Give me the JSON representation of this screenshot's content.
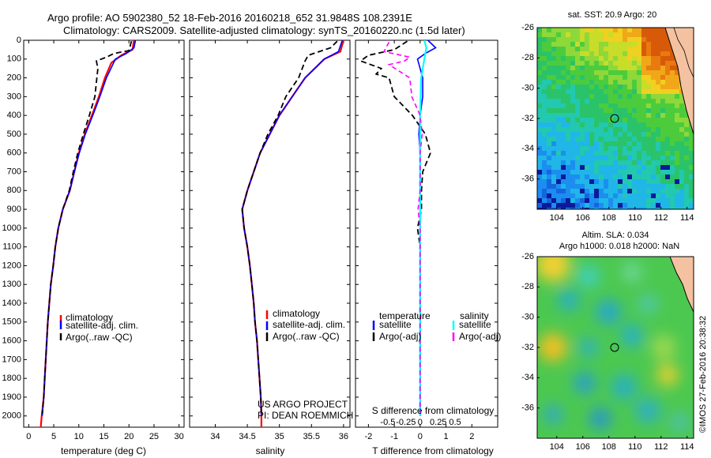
{
  "header": {
    "line1": "Argo profile: AO 5902380_52 18-Feb-2016 20160218_652 31.9848S 108.2391E",
    "line2": "Climatology: CARS2009. Satellite-adjusted climatology: synTS_20160220.nc (1.5d later)"
  },
  "colors": {
    "climatology": "#ff0000",
    "satellite": "#0000ff",
    "argo": "#000000",
    "salinity_satellite": "#00ffff",
    "salinity_argo": "#ff00ff"
  },
  "depth_axis": {
    "ylim": [
      0,
      2060
    ],
    "ticks": [
      0,
      100,
      200,
      300,
      400,
      500,
      600,
      700,
      800,
      900,
      1000,
      1100,
      1200,
      1300,
      1400,
      1500,
      1600,
      1700,
      1800,
      1900,
      2000
    ],
    "tick_labels": [
      "0",
      "100",
      "200",
      "300",
      "400",
      "500",
      "600",
      "700",
      "800",
      "900",
      "1000",
      "1100",
      "1200",
      "1300",
      "1400",
      "1500",
      "1600",
      "1700",
      "1800",
      "1900",
      "2000"
    ]
  },
  "panels": {
    "temperature": {
      "xlabel": "temperature (deg C)",
      "xlim": [
        -1,
        31
      ],
      "ticks": [
        0,
        5,
        10,
        15,
        20,
        25,
        30
      ],
      "tick_labels": [
        "0",
        "5",
        "10",
        "15",
        "20",
        "25",
        "30"
      ],
      "legend": [
        "climatology",
        "satellite-adj. clim.",
        "Argo(..raw -QC)"
      ]
    },
    "salinity": {
      "xlabel": "salinity",
      "xlim": [
        33.6,
        36.1
      ],
      "ticks": [
        34,
        34.5,
        35,
        35.5,
        36
      ],
      "tick_labels": [
        "34",
        "34.5",
        "35",
        "35.5",
        "36"
      ],
      "legend": [
        "climatology",
        "satellite-adj. clim.",
        "Argo(..raw -QC)"
      ],
      "note1": "US ARGO PROJECT",
      "note2": "PI: DEAN ROEMMICH"
    },
    "difference": {
      "xlabel": "T difference from climatology",
      "xlabel_top": "S difference from climatology",
      "xlim": [
        -2.5,
        3.0
      ],
      "t_ticks": [
        -2,
        -1,
        0,
        1,
        2
      ],
      "t_tick_labels": [
        "-2",
        "-1",
        "0",
        "1",
        "2"
      ],
      "s_tick_labels": [
        "-0.5",
        "-0.25",
        "0",
        "0.25",
        "0.5"
      ],
      "legend_temperature_title": "temperature",
      "legend_salinity_title": "salinity",
      "legend_satellite": "satellite",
      "legend_argo": "Argo(-adj)"
    }
  },
  "maps": {
    "sst": {
      "title": "sat. SST: 20.9 Argo: 20",
      "lon_ticks": [
        "104",
        "106",
        "108",
        "110",
        "112",
        "114"
      ],
      "lat_ticks": [
        "-26",
        "-28",
        "-30",
        "-32",
        "-34",
        "-36"
      ]
    },
    "sla": {
      "title1": "Altim. SLA: 0.034",
      "title2": "Argo h1000: 0.018 h2000: NaN",
      "lon_ticks": [
        "104",
        "106",
        "108",
        "110",
        "112",
        "114"
      ],
      "lat_ticks": [
        "-26",
        "-28",
        "-30",
        "-32",
        "-34",
        "-36"
      ]
    },
    "lon_range": [
      102.5,
      114.5
    ],
    "lat_range": [
      -26,
      -38
    ],
    "float_position": {
      "lon": 108.24,
      "lat": -31.98
    }
  },
  "credit": "©IMOS 27-Feb-2016 20:38:32",
  "chart_data": [
    {
      "type": "line",
      "title": "",
      "xlabel": "temperature (deg C)",
      "ylabel": "",
      "series": [
        {
          "name": "climatology",
          "points": [
            [
              21,
              0
            ],
            [
              20.7,
              50
            ],
            [
              18.5,
              80
            ],
            [
              16.5,
              120
            ],
            [
              15.2,
              200
            ],
            [
              14,
              300
            ],
            [
              12.6,
              400
            ],
            [
              11.2,
              500
            ],
            [
              10,
              600
            ],
            [
              9.1,
              700
            ],
            [
              8.2,
              800
            ],
            [
              6.8,
              900
            ],
            [
              5.9,
              1000
            ],
            [
              5.3,
              1100
            ],
            [
              4.9,
              1200
            ],
            [
              4.4,
              1300
            ],
            [
              4.1,
              1400
            ],
            [
              3.8,
              1500
            ],
            [
              3.6,
              1600
            ],
            [
              3.4,
              1700
            ],
            [
              3.2,
              1800
            ],
            [
              3.0,
              1900
            ],
            [
              2.6,
              2000
            ],
            [
              2.4,
              2060
            ]
          ]
        },
        {
          "name": "satellite-adj. clim.",
          "points": [
            [
              21.3,
              0
            ],
            [
              21,
              40
            ],
            [
              19.5,
              70
            ],
            [
              17.3,
              100
            ],
            [
              15.5,
              200
            ],
            [
              14.2,
              300
            ],
            [
              12.8,
              400
            ],
            [
              11.3,
              500
            ],
            [
              10.1,
              600
            ],
            [
              9.1,
              700
            ],
            [
              8.2,
              800
            ],
            [
              6.8,
              900
            ],
            [
              5.9,
              1000
            ],
            [
              5.3,
              1100
            ],
            [
              4.9,
              1200
            ],
            [
              4.4,
              1300
            ],
            [
              4.1,
              1400
            ],
            [
              3.8,
              1500
            ],
            [
              3.6,
              1600
            ],
            [
              3.4,
              1700
            ],
            [
              3.2,
              1800
            ],
            [
              3.0,
              1900
            ],
            [
              2.7,
              2000
            ]
          ]
        },
        {
          "name": "Argo(..raw -QC)",
          "points": [
            [
              20.5,
              5
            ],
            [
              20,
              55
            ],
            [
              17,
              70
            ],
            [
              15.5,
              90
            ],
            [
              13.5,
              110
            ],
            [
              13.8,
              150
            ],
            [
              13.6,
              200
            ],
            [
              13.2,
              300
            ],
            [
              12.1,
              400
            ],
            [
              10.9,
              500
            ],
            [
              9.8,
              600
            ],
            [
              8.9,
              700
            ],
            [
              8.1,
              800
            ],
            [
              6.8,
              900
            ],
            [
              5.9,
              1000
            ],
            [
              5.3,
              1100
            ],
            [
              4.9,
              1200
            ],
            [
              4.4,
              1300
            ],
            [
              4.1,
              1400
            ],
            [
              3.8,
              1500
            ],
            [
              3.6,
              1600
            ],
            [
              3.4,
              1700
            ],
            [
              3.2,
              1800
            ],
            [
              3.0,
              1900
            ],
            [
              2.7,
              1990
            ]
          ]
        }
      ]
    },
    {
      "type": "line",
      "title": "",
      "xlabel": "salinity",
      "ylabel": "",
      "series": [
        {
          "name": "climatology",
          "points": [
            [
              36.0,
              0
            ],
            [
              35.95,
              60
            ],
            [
              35.7,
              100
            ],
            [
              35.4,
              200
            ],
            [
              35.2,
              300
            ],
            [
              35.0,
              400
            ],
            [
              34.85,
              500
            ],
            [
              34.7,
              600
            ],
            [
              34.6,
              700
            ],
            [
              34.5,
              800
            ],
            [
              34.42,
              900
            ],
            [
              34.45,
              1000
            ],
            [
              34.5,
              1100
            ],
            [
              34.54,
              1200
            ],
            [
              34.57,
              1300
            ],
            [
              34.6,
              1400
            ],
            [
              34.62,
              1500
            ],
            [
              34.65,
              1600
            ],
            [
              34.67,
              1700
            ],
            [
              34.69,
              1800
            ],
            [
              34.71,
              1900
            ],
            [
              34.72,
              2000
            ],
            [
              34.72,
              2060
            ]
          ]
        },
        {
          "name": "satellite-adj. clim.",
          "points": [
            [
              35.98,
              0
            ],
            [
              35.92,
              60
            ],
            [
              35.7,
              100
            ],
            [
              35.4,
              200
            ],
            [
              35.2,
              300
            ],
            [
              35.0,
              400
            ],
            [
              34.85,
              500
            ],
            [
              34.7,
              600
            ],
            [
              34.6,
              700
            ],
            [
              34.5,
              800
            ],
            [
              34.42,
              900
            ],
            [
              34.45,
              1000
            ],
            [
              34.5,
              1100
            ],
            [
              34.54,
              1200
            ],
            [
              34.57,
              1300
            ],
            [
              34.6,
              1400
            ],
            [
              34.62,
              1500
            ],
            [
              34.65,
              1600
            ],
            [
              34.67,
              1700
            ],
            [
              34.69,
              1800
            ],
            [
              34.71,
              1900
            ],
            [
              34.72,
              2000
            ]
          ]
        },
        {
          "name": "Argo(..raw -QC)",
          "points": [
            [
              35.9,
              5
            ],
            [
              35.8,
              40
            ],
            [
              35.45,
              80
            ],
            [
              35.4,
              110
            ],
            [
              35.3,
              200
            ],
            [
              35.1,
              300
            ],
            [
              34.98,
              400
            ],
            [
              34.82,
              500
            ],
            [
              34.7,
              600
            ],
            [
              34.6,
              700
            ],
            [
              34.5,
              800
            ],
            [
              34.42,
              900
            ],
            [
              34.45,
              1000
            ],
            [
              34.5,
              1100
            ],
            [
              34.54,
              1200
            ],
            [
              34.57,
              1300
            ],
            [
              34.6,
              1400
            ],
            [
              34.62,
              1500
            ],
            [
              34.65,
              1600
            ],
            [
              34.67,
              1700
            ],
            [
              34.69,
              1800
            ],
            [
              34.71,
              1900
            ],
            [
              34.72,
              1990
            ]
          ]
        }
      ]
    },
    {
      "type": "line",
      "title": "",
      "xlabel": "T difference from climatology",
      "ylabel": "",
      "series": [
        {
          "name": "satellite",
          "points": [
            [
              0.3,
              0
            ],
            [
              0.6,
              40
            ],
            [
              0.2,
              70
            ],
            [
              -0.1,
              100
            ],
            [
              0.1,
              200
            ],
            [
              0.1,
              300
            ],
            [
              0.0,
              400
            ],
            [
              -0.05,
              500
            ],
            [
              0.0,
              600
            ],
            [
              0.0,
              700
            ],
            [
              0.0,
              800
            ],
            [
              0.0,
              900
            ],
            [
              0.0,
              1000
            ],
            [
              0.0,
              1200
            ],
            [
              0.0,
              1500
            ],
            [
              0.0,
              2000
            ]
          ]
        },
        {
          "name": "Argo(-adj)",
          "points": [
            [
              -0.5,
              5
            ],
            [
              -1.0,
              50
            ],
            [
              -2.0,
              80
            ],
            [
              -2.3,
              110
            ],
            [
              -1.5,
              150
            ],
            [
              -1.7,
              180
            ],
            [
              -1.2,
              200
            ],
            [
              -1.0,
              300
            ],
            [
              -0.3,
              400
            ],
            [
              0.2,
              500
            ],
            [
              0.4,
              600
            ],
            [
              0.1,
              700
            ],
            [
              0.05,
              800
            ],
            [
              0.05,
              900
            ],
            [
              -0.1,
              1000
            ],
            [
              0.0,
              1100
            ],
            [
              0.0,
              1500
            ],
            [
              0.0,
              1990
            ]
          ]
        },
        {
          "name": "satellite (salinity)",
          "points": [
            [
              0.04,
              0
            ],
            [
              0.06,
              40
            ],
            [
              0.04,
              100
            ],
            [
              0.01,
              200
            ],
            [
              0.0,
              400
            ],
            [
              0.0,
              800
            ],
            [
              0.0,
              1200
            ],
            [
              0.0,
              2000
            ]
          ]
        },
        {
          "name": "Argo(-adj) (salinity)",
          "points": [
            [
              -0.3,
              10
            ],
            [
              -0.35,
              60
            ],
            [
              -0.1,
              90
            ],
            [
              -0.15,
              110
            ],
            [
              -0.3,
              130
            ],
            [
              -0.1,
              200
            ],
            [
              -0.08,
              300
            ],
            [
              0.0,
              400
            ],
            [
              0.02,
              500
            ],
            [
              0.0,
              600
            ],
            [
              0.0,
              800
            ],
            [
              -0.02,
              900
            ],
            [
              0.0,
              1000
            ],
            [
              0.0,
              1500
            ],
            [
              0.0,
              1990
            ]
          ]
        }
      ]
    }
  ]
}
